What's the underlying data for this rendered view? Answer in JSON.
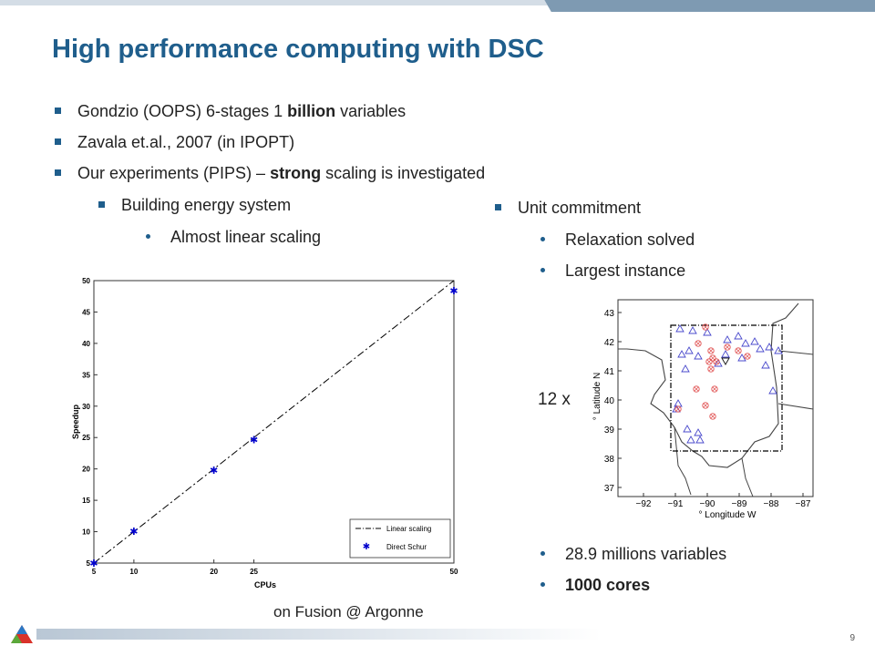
{
  "title": "High performance computing with DSC",
  "bullets": {
    "b1": {
      "pre": "Gondzio (OOPS)  6-stages 1 ",
      "bold": "billion",
      "post": "  variables"
    },
    "b2": "Zavala et.al., 2007 (in IPOPT)",
    "b3": {
      "pre": "Our experiments (PIPS) – ",
      "bold": "strong",
      "post": " scaling is investigated"
    },
    "b3a": "Building energy system",
    "b3a_i": "Almost linear scaling",
    "b3b": "Unit commitment",
    "b3b_i": "Relaxation solved",
    "b3b_ii": "Largest instance",
    "b3b_iii": "28.9 millions variables",
    "b3b_iv": "1000 cores"
  },
  "multiplier_label": "12 x",
  "caption": "on Fusion @ Argonne",
  "page_number": "9",
  "colors": {
    "title": "#1f5e8c",
    "accent": "#1f5e8c",
    "header_bar": "#7e9ab2"
  },
  "chart_data": {
    "type": "line",
    "xlabel": "CPUs",
    "ylabel": "Speedup",
    "xlim": [
      5,
      50
    ],
    "ylim": [
      5,
      50
    ],
    "x_ticks": [
      5,
      10,
      20,
      25,
      50
    ],
    "y_ticks": [
      5,
      10,
      15,
      20,
      25,
      30,
      35,
      40,
      45,
      50
    ],
    "legend_position": "bottom-right",
    "series": [
      {
        "name": "Linear scaling",
        "style": "dash-dot",
        "color": "#000000",
        "x": [
          5,
          50
        ],
        "y": [
          5,
          50
        ]
      },
      {
        "name": "Direct Schur",
        "style": "markers",
        "color": "#0000cc",
        "x": [
          5,
          10,
          20,
          25,
          50
        ],
        "y": [
          5,
          10.1,
          19.8,
          24.7,
          48.4
        ]
      }
    ]
  },
  "map": {
    "xlabel": "° Longitude W",
    "ylabel": "° Latitude N",
    "x_ticks": [
      "−92",
      "−91",
      "−90",
      "−89",
      "−88",
      "−87"
    ],
    "y_ticks": [
      "43",
      "42",
      "41",
      "40",
      "39",
      "38",
      "37"
    ]
  }
}
